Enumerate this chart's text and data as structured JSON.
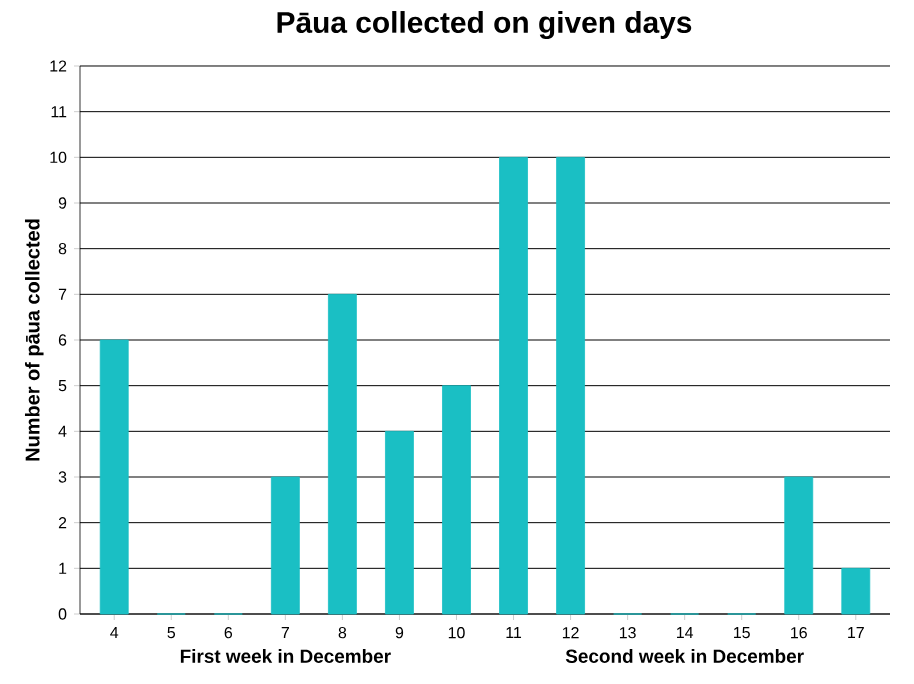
{
  "chart_data": {
    "type": "bar",
    "title": "Pāua collected on given days",
    "ylabel": "Number of pāua collected",
    "annotations": [
      "First week in December",
      "Second week in December"
    ],
    "categories": [
      "4",
      "5",
      "6",
      "7",
      "8",
      "9",
      "10",
      "11",
      "12",
      "13",
      "14",
      "15",
      "16",
      "17"
    ],
    "values": [
      6,
      0,
      0,
      3,
      7,
      4,
      5,
      10,
      10,
      0,
      0,
      0,
      3,
      1
    ],
    "color": "#1abfc4",
    "ylim": [
      0,
      12
    ],
    "yticks": [
      0,
      1,
      2,
      3,
      4,
      5,
      6,
      7,
      8,
      9,
      10,
      11,
      12
    ],
    "grid": "y"
  }
}
